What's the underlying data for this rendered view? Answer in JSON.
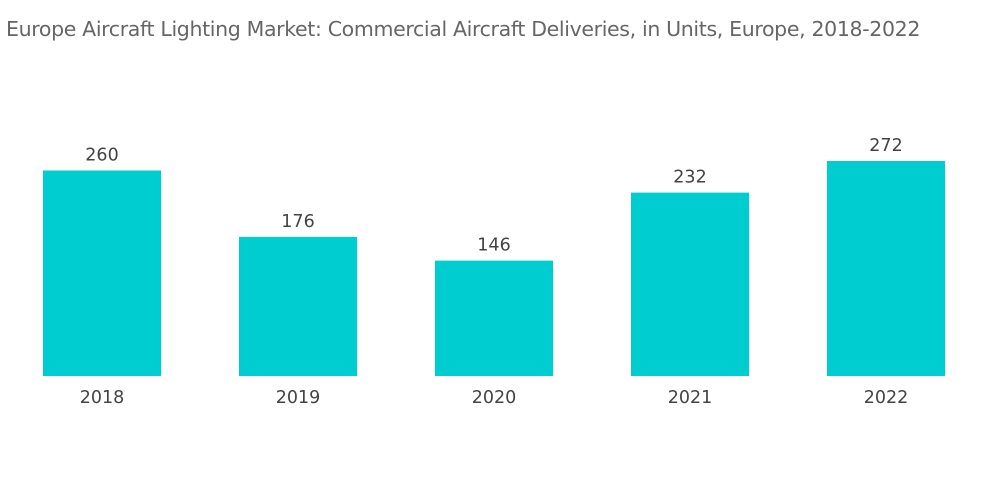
{
  "chart_data": {
    "type": "bar",
    "title": "Europe Aircraft Lighting Market: Commercial Aircraft Deliveries, in Units, Europe, 2018-2022",
    "xlabel": "",
    "ylabel": "",
    "categories": [
      "2018",
      "2019",
      "2020",
      "2021",
      "2022"
    ],
    "values": [
      260,
      176,
      146,
      232,
      272
    ],
    "data_labels": [
      "260",
      "176",
      "146",
      "232",
      "272"
    ],
    "ylim": [
      0,
      272
    ],
    "grid": false,
    "legend": "none",
    "colors": {
      "bar": "#00CDD0",
      "text": "#444444",
      "title": "#666666"
    }
  }
}
